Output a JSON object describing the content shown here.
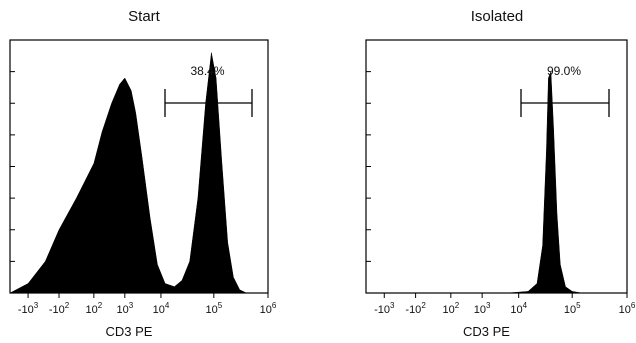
{
  "chart_data": [
    {
      "type": "area",
      "title": "Start",
      "xlabel": "CD3 PE",
      "x_scale": "biexponential",
      "x_ticks": [
        {
          "base": "-10",
          "exp": "3"
        },
        {
          "base": "-10",
          "exp": "2"
        },
        {
          "base": "10",
          "exp": "2"
        },
        {
          "base": "10",
          "exp": "3"
        },
        {
          "base": "10",
          "exp": "4"
        },
        {
          "base": "10",
          "exp": "5"
        },
        {
          "base": "10",
          "exp": "6"
        }
      ],
      "gate": {
        "label": "38.4%",
        "from": 20000,
        "to": 500000
      },
      "series": [
        {
          "x": [
            -5000,
            -1000,
            -300,
            -100,
            0,
            100,
            200,
            400,
            700,
            1000,
            1500,
            2000,
            3000,
            5000,
            8000,
            12000,
            18000,
            25000,
            35000,
            50000,
            70000,
            90000,
            110000,
            140000,
            180000,
            230000,
            300000,
            400000
          ],
          "y": [
            0,
            3,
            10,
            20,
            30,
            41,
            51,
            60,
            66,
            68,
            64,
            57,
            43,
            24,
            9,
            3,
            2,
            4,
            10,
            30,
            60,
            76,
            68,
            42,
            16,
            5,
            1,
            0
          ]
        }
      ]
    },
    {
      "type": "area",
      "title": "Isolated",
      "xlabel": "CD3 PE",
      "x_scale": "biexponential",
      "x_ticks": [
        {
          "base": "-10",
          "exp": "3"
        },
        {
          "base": "-10",
          "exp": "2"
        },
        {
          "base": "10",
          "exp": "2"
        },
        {
          "base": "10",
          "exp": "3"
        },
        {
          "base": "10",
          "exp": "4"
        },
        {
          "base": "10",
          "exp": "5"
        },
        {
          "base": "10",
          "exp": "6"
        }
      ],
      "gate": {
        "label": "99.0%",
        "from": 20000,
        "to": 500000
      },
      "series": [
        {
          "x": [
            -5000,
            5000,
            15000,
            22000,
            28000,
            33000,
            36000,
            40000,
            45000,
            52000,
            60000,
            75000,
            100000,
            150000
          ],
          "y": [
            0,
            0,
            0.5,
            3,
            15,
            45,
            68,
            70,
            52,
            25,
            9,
            2,
            0.5,
            0
          ]
        }
      ]
    }
  ]
}
